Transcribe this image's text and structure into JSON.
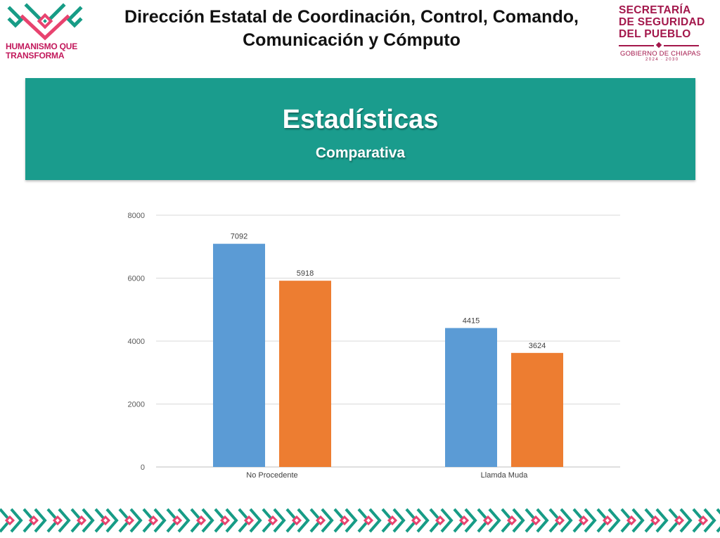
{
  "header": {
    "left_logo_text": [
      "HUMANISMO QUE",
      "TRANSFORMA"
    ],
    "title_lines": [
      "Dirección Estatal de Coordinación, Control, Comando,",
      "Comunicación y Cómputo"
    ],
    "right_logo": {
      "lines": [
        "SECRETARÍA",
        "DE SEGURIDAD",
        "DEL PUEBLO"
      ],
      "government": "GOBIERNO DE CHIAPAS",
      "years": "2024 · 2030"
    }
  },
  "banner": {
    "title": "Estadísticas",
    "subtitle": "Comparativa"
  },
  "colors": {
    "banner": "#1a9c8d",
    "series_blue": "#5b9bd5",
    "series_orange": "#ed7d31",
    "brand_magenta": "#a3174b",
    "pattern_teal": "#179c86",
    "pattern_pink": "#e8436f"
  },
  "chart_data": {
    "type": "bar",
    "categories": [
      "No Procedente",
      "Llamda Muda"
    ],
    "series": [
      {
        "color": "#5b9bd5",
        "values": [
          7092,
          4415
        ]
      },
      {
        "color": "#ed7d31",
        "values": [
          5918,
          3624
        ]
      }
    ],
    "ylim": [
      0,
      8000
    ],
    "yticks": [
      0,
      2000,
      4000,
      6000,
      8000
    ],
    "data_labels": true,
    "grid": true,
    "legend": "none"
  }
}
